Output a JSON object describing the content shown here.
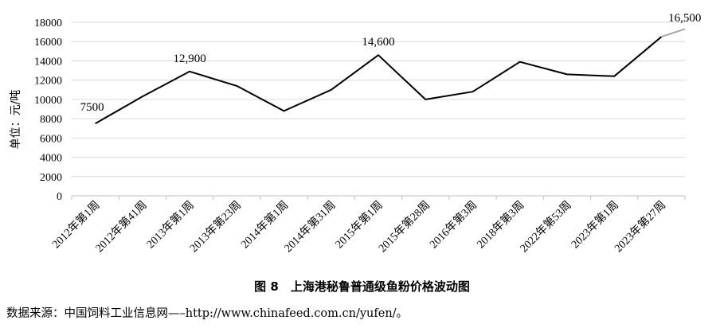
{
  "chart_data": {
    "type": "line",
    "title": "",
    "ylabel": "单位：元/吨",
    "xlabel": "",
    "ylim": [
      0,
      18000
    ],
    "yticks": [
      0,
      2000,
      4000,
      6000,
      8000,
      10000,
      12000,
      14000,
      16000,
      18000
    ],
    "grid": true,
    "categories": [
      "2012年第1周",
      "2012年第41周",
      "2013年第1周",
      "2013年第23周",
      "2014年第1周",
      "2014年第31周",
      "2015年第1周",
      "2015年第28周",
      "2016年第3周",
      "2018年第3周",
      "2022年第53周",
      "2023年第1周",
      "2023年第27周"
    ],
    "series": [
      {
        "name": "",
        "color": "#000000",
        "values": [
          7500,
          10300,
          12900,
          11400,
          8800,
          11000,
          14600,
          10000,
          10800,
          13900,
          12600,
          12400,
          16500
        ]
      }
    ],
    "extension": {
      "color": "#a6a6a6",
      "value": 17300
    },
    "annotations": [
      {
        "index": 0,
        "text": "7500"
      },
      {
        "index": 2,
        "text": "12,900"
      },
      {
        "index": 6,
        "text": "14,600"
      },
      {
        "index": 12,
        "text": "16,500"
      }
    ]
  },
  "caption": "图 8　上海港秘鲁普通级鱼粉价格波动图",
  "source": "数据来源：中国饲料工业信息网—–http://www.chinafeed.com.cn/yufen/。"
}
